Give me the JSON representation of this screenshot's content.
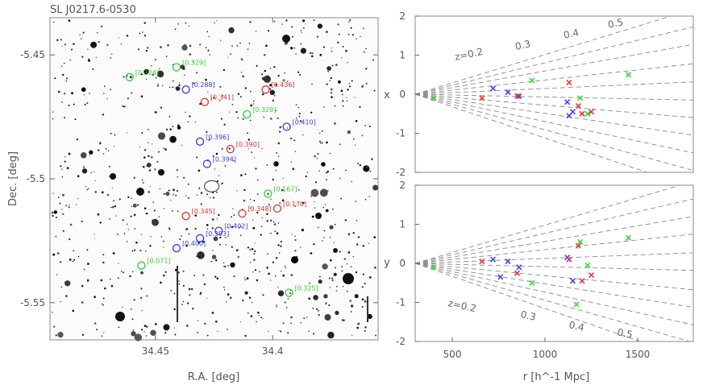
{
  "chart_data": [
    {
      "type": "scatter",
      "title": "SL J0217.6-0530",
      "xlabel": "R.A. [deg]",
      "ylabel": "Dec. [deg]",
      "xlim": [
        34.495,
        34.355
      ],
      "ylim": [
        -5.565,
        -5.435
      ],
      "xticks": [
        "34.45",
        "34.4"
      ],
      "xtick_values": [
        34.45,
        34.4
      ],
      "yticks": [
        "-5.45",
        "-5.5",
        "-5.55"
      ],
      "ytick_values": [
        -5.45,
        -5.5,
        -5.55
      ],
      "galaxies": [
        {
          "ra": 34.461,
          "dec": -5.459,
          "label": "[0.324]",
          "color": "green"
        },
        {
          "ra": 34.441,
          "dec": -5.455,
          "label": "[0.329]",
          "color": "green"
        },
        {
          "ra": 34.437,
          "dec": -5.464,
          "label": "[0.288]",
          "color": "blue"
        },
        {
          "ra": 34.429,
          "dec": -5.469,
          "label": "[0.341]",
          "color": "red"
        },
        {
          "ra": 34.403,
          "dec": -5.464,
          "label": "[0.436]",
          "color": "red"
        },
        {
          "ra": 34.411,
          "dec": -5.474,
          "label": "[0.329]",
          "color": "green"
        },
        {
          "ra": 34.394,
          "dec": -5.479,
          "label": "[0.410]",
          "color": "blue"
        },
        {
          "ra": 34.431,
          "dec": -5.485,
          "label": "[0.396]",
          "color": "blue"
        },
        {
          "ra": 34.418,
          "dec": -5.488,
          "label": "[0.390]",
          "color": "red"
        },
        {
          "ra": 34.428,
          "dec": -5.494,
          "label": "[0.394]",
          "color": "blue"
        },
        {
          "ra": 34.402,
          "dec": -5.506,
          "label": "[0.167]",
          "color": "green"
        },
        {
          "ra": 34.398,
          "dec": -5.512,
          "label": "[0.170]",
          "color": "red"
        },
        {
          "ra": 34.413,
          "dec": -5.514,
          "label": "[0.348]",
          "color": "red"
        },
        {
          "ra": 34.437,
          "dec": -5.515,
          "label": "[0.345]",
          "color": "red"
        },
        {
          "ra": 34.423,
          "dec": -5.521,
          "label": "[0.402]",
          "color": "blue"
        },
        {
          "ra": 34.431,
          "dec": -5.524,
          "label": "[0.393]",
          "color": "blue"
        },
        {
          "ra": 34.441,
          "dec": -5.528,
          "label": "[0.400]",
          "color": "blue"
        },
        {
          "ra": 34.456,
          "dec": -5.535,
          "label": "[0.071]",
          "color": "green"
        },
        {
          "ra": 34.393,
          "dec": -5.546,
          "label": "[0.325]",
          "color": "green"
        }
      ],
      "center_contour": {
        "ra": 34.426,
        "dec": -5.503
      }
    },
    {
      "type": "scatter",
      "title": "",
      "xlabel": "",
      "ylabel": "x",
      "xlim": [
        300,
        1800
      ],
      "ylim": [
        -2,
        2
      ],
      "yticks": [
        "2",
        "1",
        "0",
        "-1",
        "-2"
      ],
      "ytick_values": [
        2,
        1,
        0,
        -1,
        -2
      ],
      "redshift_lines": [
        {
          "label": "z=0.2",
          "z": 0.2
        },
        {
          "label": "0.3",
          "z": 0.3
        },
        {
          "label": "0.4",
          "z": 0.4
        },
        {
          "label": "0.5",
          "z": 0.5
        }
      ],
      "fan_slopes": [
        0.00021,
        0.00052,
        0.00085,
        0.00115,
        0.00145,
        -0.0001,
        -0.0004,
        -0.0007,
        -0.001,
        -0.0013,
        -0.0016
      ],
      "series": [
        {
          "name": "green",
          "color": "#33dd33",
          "points": [
            [
              400,
              -0.1
            ],
            [
              930,
              0.35
            ],
            [
              1190,
              -0.1
            ],
            [
              1450,
              0.5
            ],
            [
              1230,
              -0.5
            ]
          ]
        },
        {
          "name": "blue",
          "color": "#4444ee",
          "points": [
            [
              720,
              0.15
            ],
            [
              800,
              0.05
            ],
            [
              860,
              -0.05
            ],
            [
              1120,
              -0.2
            ],
            [
              1150,
              -0.45
            ],
            [
              1130,
              -0.55
            ]
          ]
        },
        {
          "name": "red",
          "color": "#ee3333",
          "points": [
            [
              660,
              -0.1
            ],
            [
              850,
              -0.05
            ],
            [
              1130,
              0.3
            ],
            [
              1180,
              -0.3
            ],
            [
              1200,
              -0.5
            ],
            [
              1250,
              -0.45
            ]
          ]
        }
      ]
    },
    {
      "type": "scatter",
      "title": "",
      "xlabel": "r [h^-1 Mpc]",
      "ylabel": "y",
      "xlim": [
        300,
        1800
      ],
      "ylim": [
        -2,
        2
      ],
      "xticks": [
        "500",
        "1000",
        "1500"
      ],
      "xtick_values": [
        500,
        1000,
        1500
      ],
      "yticks": [
        "2",
        "1",
        "0",
        "-1",
        "-2"
      ],
      "ytick_values": [
        2,
        1,
        0,
        -1,
        -2
      ],
      "redshift_lines": [
        {
          "label": "z=0.2",
          "z": 0.2
        },
        {
          "label": "0.3",
          "z": 0.3
        },
        {
          "label": "0.4",
          "z": 0.4
        },
        {
          "label": "0.5",
          "z": 0.5
        }
      ],
      "fan_slopes": [
        0.00018,
        0.0005,
        0.0008,
        0.0011,
        0.0014,
        -0.00012,
        -0.00045,
        -0.00075,
        -0.00105,
        -0.00135,
        -0.00165
      ],
      "series": [
        {
          "name": "green",
          "color": "#33dd33",
          "points": [
            [
              400,
              -0.1
            ],
            [
              930,
              -0.5
            ],
            [
              1190,
              0.55
            ],
            [
              1450,
              0.65
            ],
            [
              1230,
              -0.05
            ],
            [
              1170,
              -1.05
            ]
          ]
        },
        {
          "name": "blue",
          "color": "#4444ee",
          "points": [
            [
              720,
              0.1
            ],
            [
              760,
              -0.35
            ],
            [
              800,
              0.05
            ],
            [
              860,
              -0.1
            ],
            [
              1120,
              0.15
            ],
            [
              1150,
              -0.45
            ]
          ]
        },
        {
          "name": "red",
          "color": "#ee3333",
          "points": [
            [
              660,
              0.05
            ],
            [
              850,
              -0.25
            ],
            [
              1130,
              0.1
            ],
            [
              1180,
              0.45
            ],
            [
              1200,
              -0.45
            ],
            [
              1250,
              -0.3
            ]
          ]
        }
      ]
    }
  ]
}
